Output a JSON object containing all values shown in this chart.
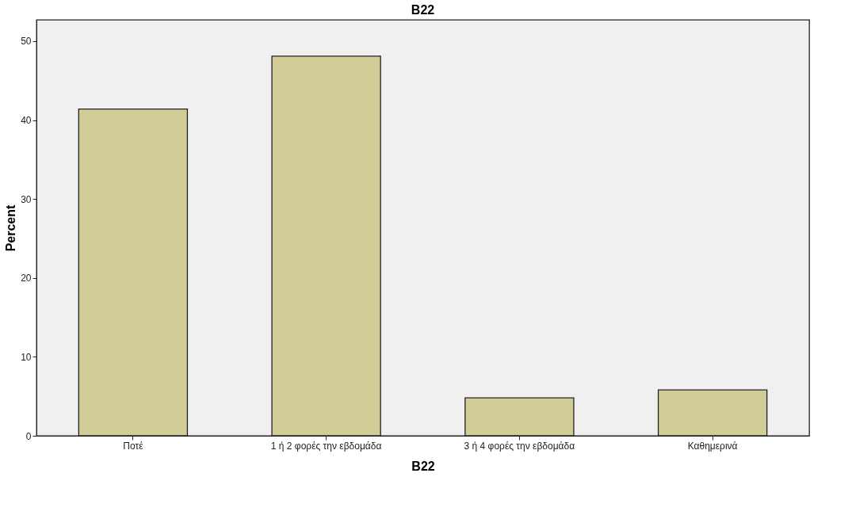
{
  "chart_data": {
    "type": "bar",
    "title": "B22",
    "xlabel": "B22",
    "ylabel": "Percent",
    "categories": [
      "Ποτέ",
      "1 ή 2 φορές την εβδομάδα",
      "3 ή 4 φορές την εβδομάδα",
      "Καθημερινά"
    ],
    "values": [
      41.4,
      48.1,
      4.8,
      5.8
    ],
    "color": "#d2cd96",
    "ylim": [
      0,
      52.7
    ],
    "yticks": [
      0,
      10,
      20,
      30,
      40,
      50
    ],
    "grid": false
  }
}
